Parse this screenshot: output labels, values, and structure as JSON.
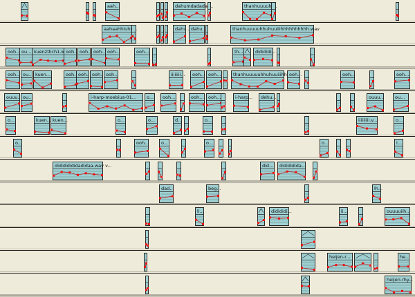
{
  "tracks": [
    {
      "clips": [
        "aah...",
        "dahumdadada-...",
        "thanhuuuuhi..."
      ]
    },
    {
      "clips": [
        "aahaahhiuhu...",
        "dahu...",
        "dahu...",
        "thanhuuuuuhhuhuuiiihhhhhhhhhh.wav"
      ]
    },
    {
      "clips": [
        "ooh...",
        "ou...",
        "kuenztlich1.wa...",
        "ooh...",
        "ooh...",
        "ooh...",
        "ooh...",
        "ooh...",
        "th...",
        "didididi..."
      ]
    },
    {
      "clips": [
        "ooh...",
        "ou...",
        "kuen...",
        "ooh...",
        "ooh...",
        "ooh...",
        "ooh...",
        "iiiiiiii...",
        "ooh...",
        "ooh...",
        "thanhuuuuuhhuhuuiiihhh...",
        "ooh...",
        "ooh...",
        "ooh..."
      ]
    },
    {
      "clips": [
        "ouuu...",
        "ou...",
        "i-harp-moebius-01...",
        "o...",
        "ooh...",
        "ooh...",
        "ooh...",
        "i-harp...",
        "dehu...",
        "ouuu...",
        "ou..."
      ]
    },
    {
      "clips": [
        "o...",
        "kuen...",
        "kuen...",
        "o...",
        "o...",
        "d...",
        "o...",
        "iiiiiiiii.v...",
        "o..."
      ]
    },
    {
      "clips": [
        "o...",
        "ooh...",
        "o...",
        "o...",
        "o...",
        "i..."
      ]
    },
    {
      "clips": [
        "didididididadidaa.wav v...",
        "did...",
        "didididida..."
      ]
    },
    {
      "clips": [
        "dad...",
        "beg...",
        "lh..."
      ]
    },
    {
      "clips": [
        "li...",
        "didididi...",
        "li...",
        "ouuuuiih..."
      ]
    },
    {
      "clips": []
    },
    {
      "clips": [
        "heijen-r...",
        "he..."
      ]
    },
    {
      "clips": [
        "heijen-rhy..."
      ]
    }
  ]
}
